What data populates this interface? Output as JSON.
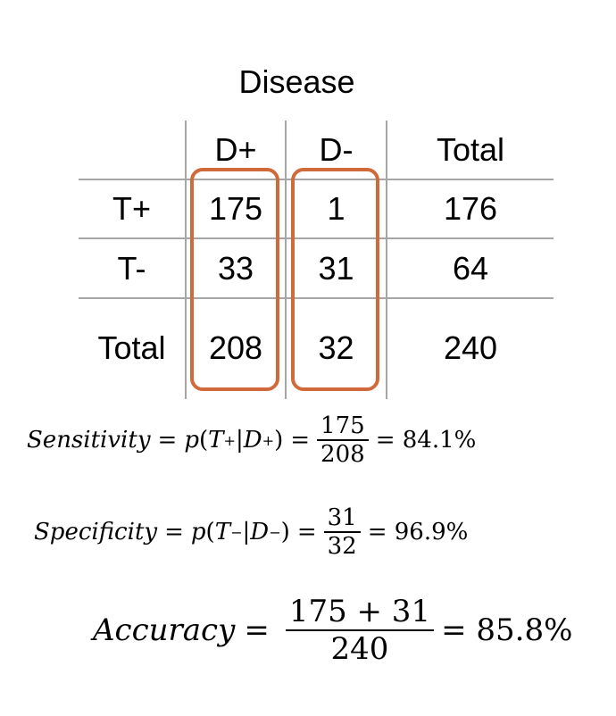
{
  "table": {
    "title": "Disease",
    "headers": [
      "",
      "D+",
      "D-",
      "Total"
    ],
    "rows": [
      {
        "label": "T+",
        "values": [
          "175",
          "1",
          "176"
        ]
      },
      {
        "label": "T-",
        "values": [
          "33",
          "31",
          "64"
        ]
      },
      {
        "label": "Total",
        "values": [
          "208",
          "32",
          "240"
        ]
      }
    ]
  },
  "colors": {
    "highlight": "#d06a3a",
    "gridline": "#a6a6a6"
  },
  "formulas": {
    "sensitivity": {
      "name": "Sensitivity",
      "eq": "=",
      "prob": "p",
      "open": "(",
      "a_letter": "T",
      "a_sign": "+",
      "sep": "|",
      "b_letter": "D",
      "b_sign": "+",
      "close": ")",
      "eq2": "=",
      "numerator": "175",
      "denominator": "208",
      "result": "= 84.1%"
    },
    "specificity": {
      "name": "Specificity",
      "eq": "=",
      "prob": "p",
      "open": "(",
      "a_letter": "T",
      "a_sign": "−",
      "sep": "|",
      "b_letter": "D",
      "b_sign": "−",
      "close": ")",
      "eq2": "=",
      "numerator": "31",
      "denominator": "32",
      "result": "= 96.9%"
    },
    "accuracy": {
      "name": "Accuracy",
      "eq": "=",
      "numerator": "175 + 31",
      "denominator": "240",
      "result": "= 85.8%"
    }
  }
}
